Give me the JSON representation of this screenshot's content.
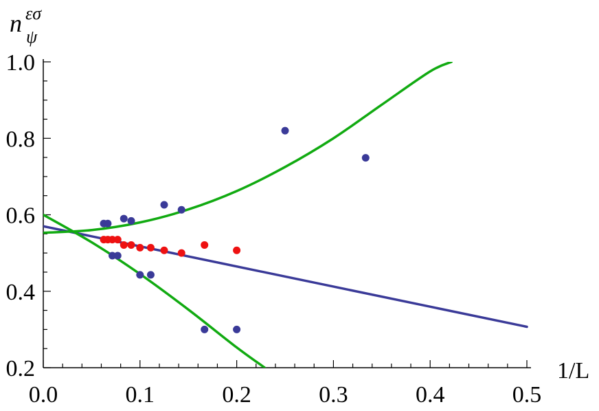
{
  "chart_data": {
    "type": "scatter",
    "title": "",
    "xlabel": "1/L",
    "ylabel": {
      "base": "n",
      "superscript": "εσ",
      "subscript": "ψ"
    },
    "xlim": [
      0.0,
      0.5
    ],
    "ylim": [
      0.2,
      1.0
    ],
    "x_ticks": [
      "0.0",
      "0.1",
      "0.2",
      "0.3",
      "0.4",
      "0.5"
    ],
    "y_ticks": [
      "0.2",
      "0.4",
      "0.6",
      "0.8",
      "1.0"
    ],
    "grid": false,
    "legend": "none",
    "series": [
      {
        "kind": "points",
        "color": "#3a3a98",
        "x": [
          0.0625,
          0.0667,
          0.0714,
          0.0769,
          0.0833,
          0.0909,
          0.1,
          0.1111,
          0.125,
          0.1429,
          0.1667,
          0.2,
          0.25,
          0.3333
        ],
        "y": [
          0.577,
          0.577,
          0.493,
          0.493,
          0.59,
          0.584,
          0.443,
          0.443,
          0.626,
          0.613,
          0.3,
          0.3,
          0.82,
          0.749
        ]
      },
      {
        "kind": "points",
        "color": "#ee1111",
        "x": [
          0.0625,
          0.0667,
          0.0714,
          0.0769,
          0.0833,
          0.0909,
          0.1,
          0.1111,
          0.125,
          0.1429,
          0.1667,
          0.2
        ],
        "y": [
          0.535,
          0.535,
          0.535,
          0.535,
          0.521,
          0.521,
          0.514,
          0.514,
          0.507,
          0.5,
          0.521,
          0.507
        ]
      },
      {
        "kind": "line",
        "color": "#3a3a98",
        "x": [
          0.0,
          0.5
        ],
        "y": [
          0.57,
          0.307
        ]
      },
      {
        "kind": "curve",
        "color": "#11aa11",
        "x": [
          0.0,
          0.05,
          0.1,
          0.15,
          0.2,
          0.25,
          0.3,
          0.35,
          0.4,
          0.422
        ],
        "y": [
          0.553,
          0.56,
          0.58,
          0.614,
          0.662,
          0.725,
          0.8,
          0.888,
          0.975,
          1.0
        ]
      },
      {
        "kind": "curve",
        "color": "#11aa11",
        "x": [
          0.0,
          0.05,
          0.1,
          0.15,
          0.2,
          0.229
        ],
        "y": [
          0.6,
          0.528,
          0.445,
          0.352,
          0.253,
          0.2
        ]
      }
    ]
  }
}
